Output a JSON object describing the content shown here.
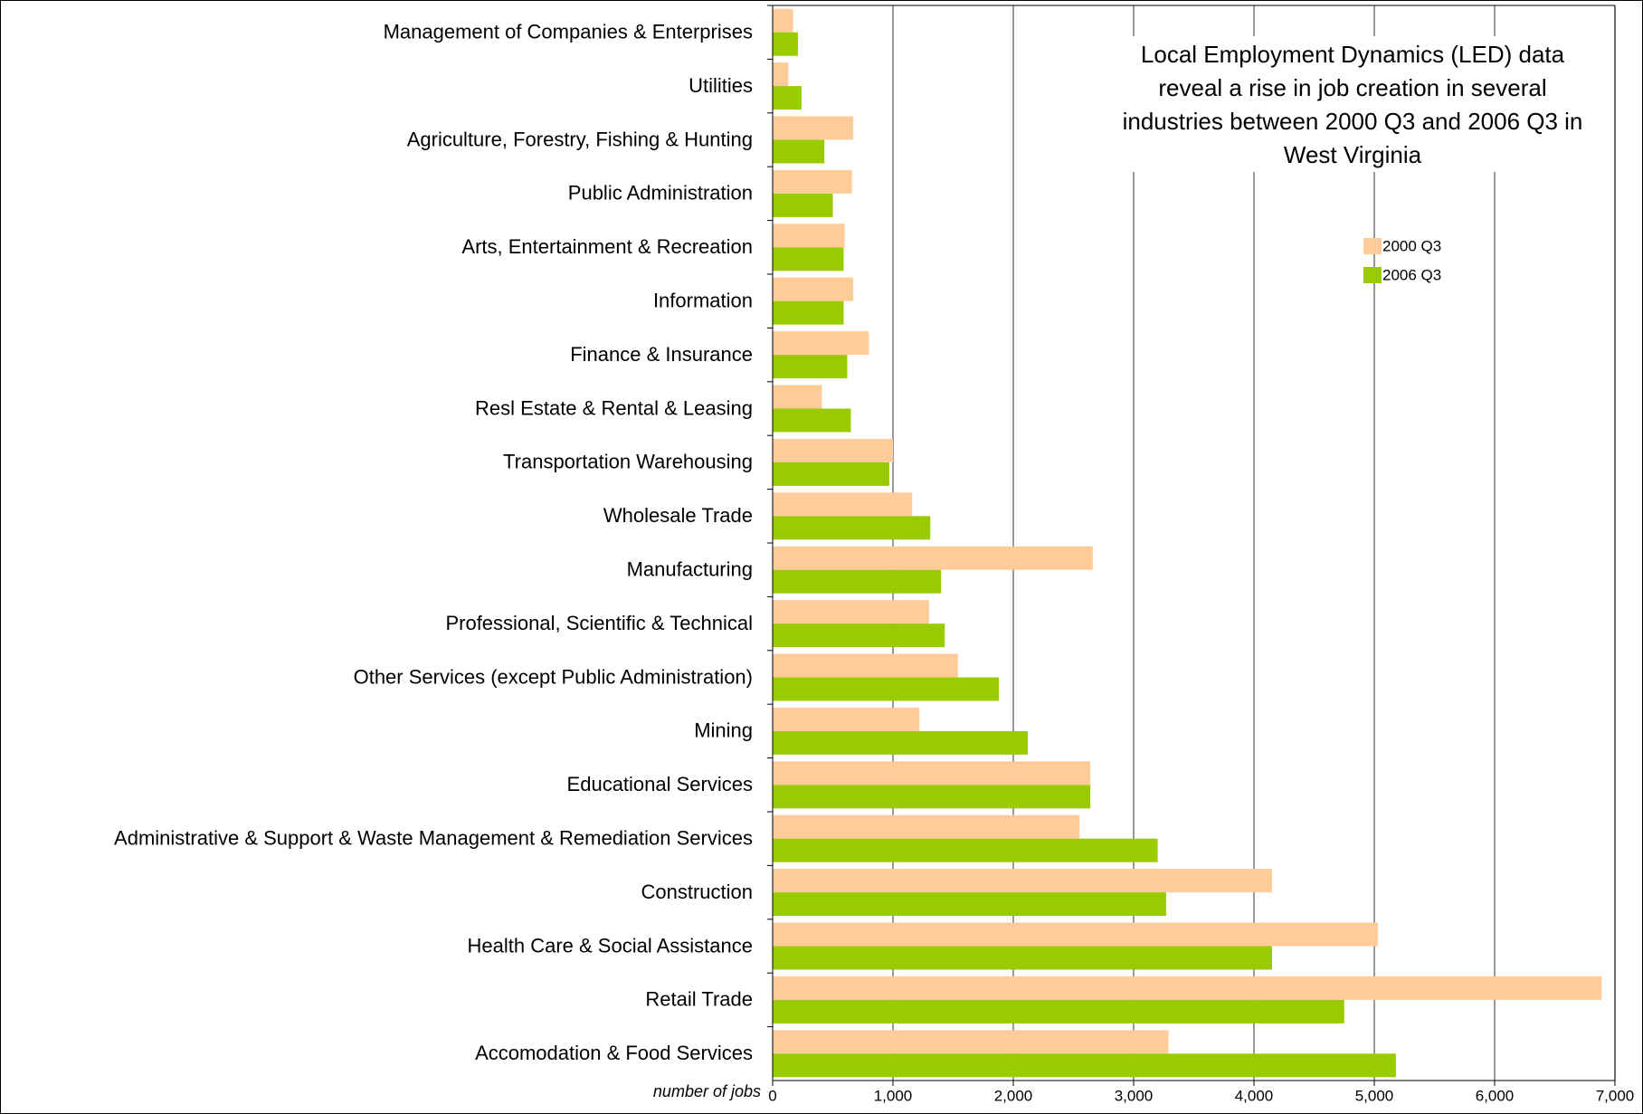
{
  "chart_data": {
    "type": "barh",
    "title": "Local Employment Dynamics (LED) data reveal a rise in job creation in several industries between 2000 Q3 and 2006 Q3 in West Virginia",
    "xlabel": "number of jobs",
    "categories": [
      "Management of Companies & Enterprises",
      "Utilities",
      "Agriculture, Forestry, Fishing & Hunting",
      "Public Administration",
      "Arts, Entertainment & Recreation",
      "Information",
      "Finance & Insurance",
      "Resl Estate & Rental & Leasing",
      "Transportation Warehousing",
      "Wholesale Trade",
      "Manufacturing",
      "Professional, Scientific & Technical",
      "Other Services (except Public Administration)",
      "Mining",
      "Educational Services",
      "Administrative & Support & Waste Management & Remediation Services",
      "Construction",
      "Health Care & Social Assistance",
      "Retail Trade",
      "Accomodation & Food Services"
    ],
    "series": [
      {
        "name": "2000 Q3",
        "color": "#ffcc99",
        "values": [
          170,
          130,
          670,
          660,
          600,
          670,
          800,
          410,
          1000,
          1160,
          2660,
          1300,
          1540,
          1220,
          2640,
          2550,
          4150,
          5030,
          6890,
          3290
        ]
      },
      {
        "name": "2006 Q3",
        "color": "#99cc00",
        "values": [
          210,
          240,
          430,
          500,
          590,
          590,
          620,
          650,
          970,
          1310,
          1400,
          1430,
          1880,
          2120,
          2640,
          3200,
          3270,
          4150,
          4750,
          5180
        ]
      }
    ],
    "xlim": [
      0,
      7000
    ],
    "xticks": [
      0,
      {
        "value": 1000,
        "label": "1,000"
      },
      {
        "value": 2000,
        "label": "2,000"
      },
      {
        "value": 3000,
        "label": "3,000"
      },
      {
        "value": 4000,
        "label": "4,000"
      },
      {
        "value": 5000,
        "label": "5,000"
      },
      {
        "value": 6000,
        "label": "6,000"
      },
      {
        "value": 7000,
        "label": "7,000"
      }
    ],
    "grid": true
  }
}
